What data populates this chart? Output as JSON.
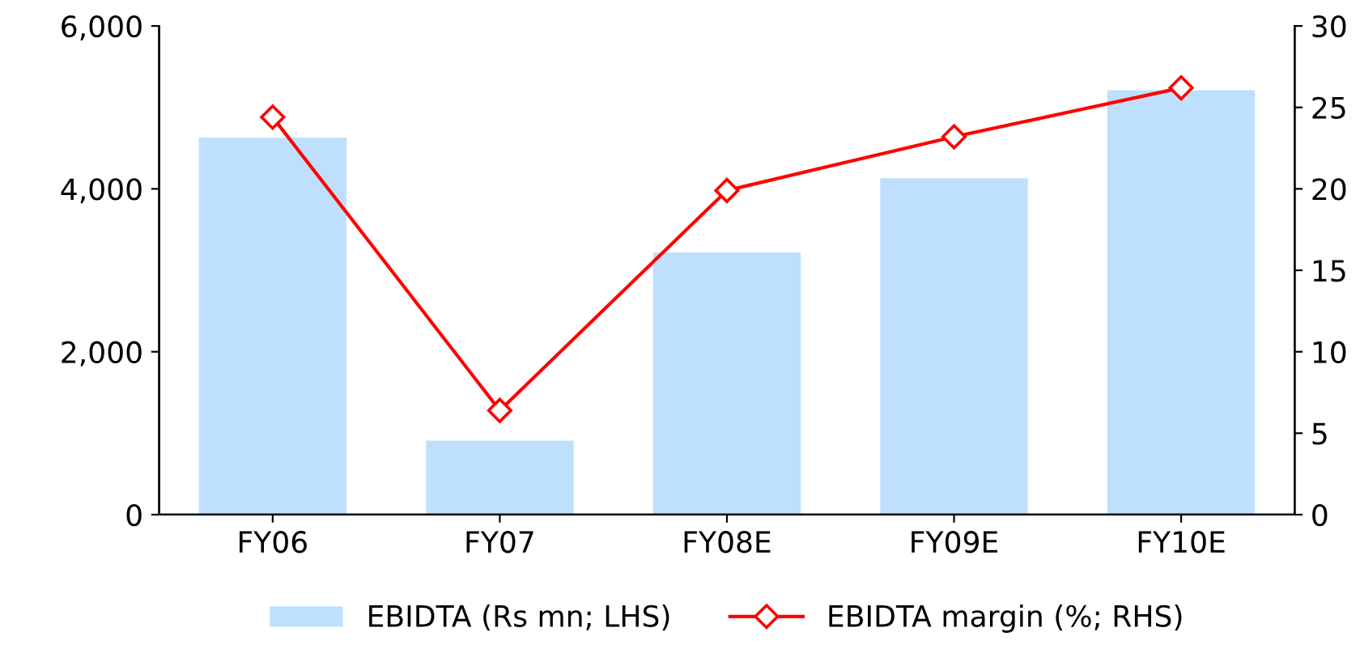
{
  "chart_data": {
    "type": "bar",
    "categories": [
      "FY06",
      "FY07",
      "FY08E",
      "FY09E",
      "FY10E"
    ],
    "series": [
      {
        "name": "EBIDTA (Rs mn; LHS)",
        "color": "#bfdfff",
        "values": [
          4630,
          910,
          3220,
          4130,
          5210
        ]
      },
      {
        "name": "EBIDTA margin (%; RHS)",
        "type": "line",
        "axis": "y2",
        "color": "#ff0000",
        "marker": "diamond",
        "values": [
          24.4,
          6.4,
          19.9,
          23.2,
          26.2
        ]
      }
    ],
    "ylim": [
      0,
      6000
    ],
    "yticks": [
      {
        "value": 0,
        "label": "0"
      },
      {
        "value": 2000,
        "label": "2,000"
      },
      {
        "value": 4000,
        "label": "4,000"
      },
      {
        "value": 6000,
        "label": "6,000"
      }
    ],
    "y2lim": [
      0,
      30
    ],
    "y2ticks": [
      0,
      5,
      10,
      15,
      20,
      25,
      30
    ],
    "grid": false,
    "legend": "bottom"
  }
}
